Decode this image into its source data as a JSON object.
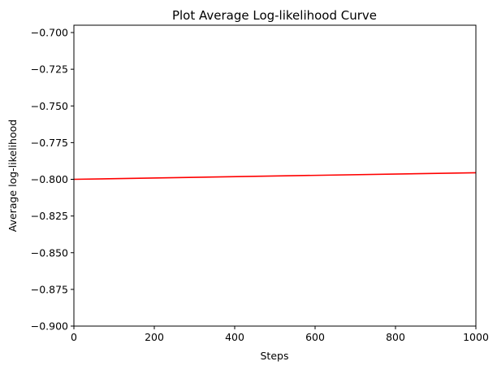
{
  "chart_data": {
    "type": "line",
    "title": "Plot Average Log-likelihood Curve",
    "xlabel": "Steps",
    "ylabel": "Average log-likelihood",
    "xlim": [
      0,
      1000
    ],
    "ylim": [
      -0.9,
      -0.695
    ],
    "xticks": [
      0,
      200,
      400,
      600,
      800,
      1000
    ],
    "xtick_labels": [
      "0",
      "200",
      "400",
      "600",
      "800",
      "1000"
    ],
    "yticks": [
      -0.7,
      -0.725,
      -0.75,
      -0.775,
      -0.8,
      -0.825,
      -0.85,
      -0.875,
      -0.9
    ],
    "ytick_labels": [
      "−0.700",
      "−0.725",
      "−0.750",
      "−0.775",
      "−0.800",
      "−0.825",
      "−0.850",
      "−0.875",
      "−0.900"
    ],
    "grid": false,
    "series": [
      {
        "color": "#ff0000",
        "x": [
          0,
          1000
        ],
        "y": [
          -0.8,
          -0.7955
        ]
      }
    ]
  }
}
